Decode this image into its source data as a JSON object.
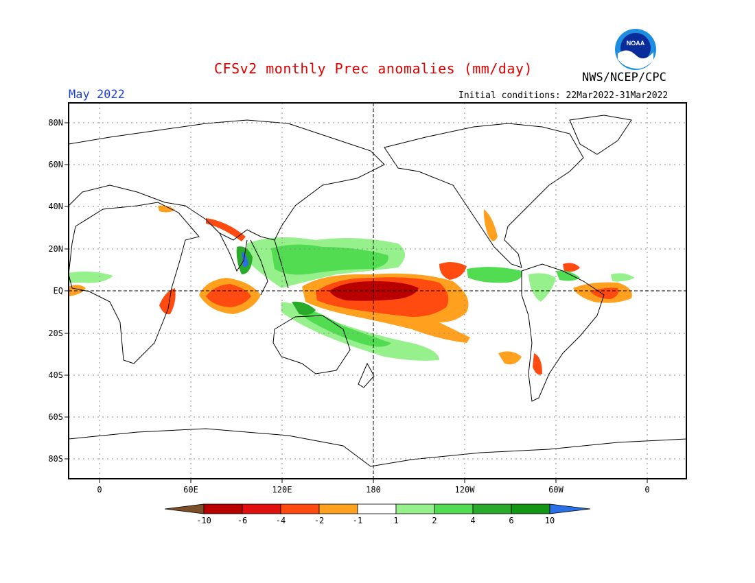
{
  "header": {
    "title": "CFSv2 monthly Prec anomalies (mm/day)",
    "month": "May 2022",
    "initial_conditions": "Initial conditions: 22Mar2022-31Mar2022",
    "agency": "NWS/NCEP/CPC",
    "logo_text": "NOAA"
  },
  "map": {
    "lat_labels": [
      "80N",
      "60N",
      "40N",
      "20N",
      "EQ",
      "20S",
      "40S",
      "60S",
      "80S"
    ],
    "lon_labels": [
      "0",
      "60E",
      "120E",
      "180",
      "120W",
      "60W",
      "0"
    ]
  },
  "colorbar": {
    "labels": [
      "-10",
      "-6",
      "-4",
      "-2",
      "-1",
      "1",
      "2",
      "4",
      "6",
      "10"
    ],
    "colors": {
      "lt_-10": "#7a4f2a",
      "-10_-6": "#b80000",
      "-6_-4": "#e01010",
      "-4_-2": "#ff4a10",
      "-2_-1": "#ffa01e",
      "-1_1": "#ffffff",
      "1_2": "#96f08c",
      "2_4": "#52dc52",
      "4_6": "#2aaa2a",
      "6_10": "#139613",
      "gt_10": "#2a6fe6"
    }
  }
}
